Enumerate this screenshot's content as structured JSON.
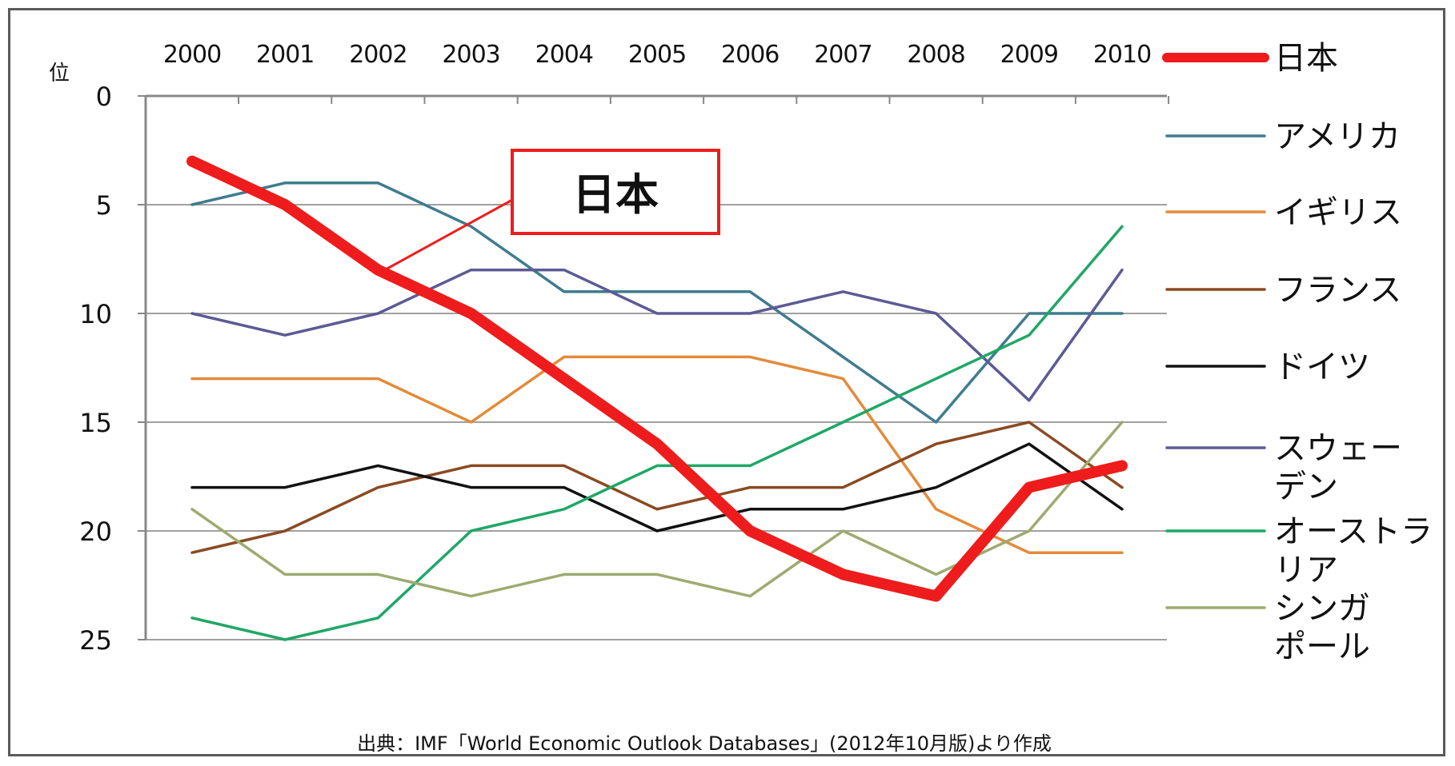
{
  "chart_data": {
    "type": "line",
    "x": [
      "2000",
      "2001",
      "2002",
      "2003",
      "2004",
      "2005",
      "2006",
      "2007",
      "2008",
      "2009",
      "2010"
    ],
    "ylabel": "位",
    "yticks": [
      0,
      5,
      10,
      15,
      20,
      25
    ],
    "ylim": [
      0,
      25
    ],
    "y_inverted": true,
    "x_axis_position": "top",
    "grid": true,
    "legend_position": "right",
    "series": [
      {
        "name": "日本",
        "color": "#ee1c1c",
        "width": 14,
        "values": [
          3,
          5,
          8,
          10,
          13,
          16,
          20,
          22,
          23,
          18,
          17
        ]
      },
      {
        "name": "アメリカ",
        "color": "#3f7c8e",
        "width": 3.5,
        "values": [
          5,
          4,
          4,
          6,
          9,
          9,
          9,
          12,
          15,
          10,
          10
        ]
      },
      {
        "name": "イギリス",
        "color": "#e38b39",
        "width": 3.5,
        "values": [
          13,
          13,
          13,
          15,
          12,
          12,
          12,
          13,
          19,
          21,
          21
        ]
      },
      {
        "name": "フランス",
        "color": "#8a4a22",
        "width": 3.5,
        "values": [
          21,
          20,
          18,
          17,
          17,
          19,
          18,
          18,
          16,
          15,
          18
        ]
      },
      {
        "name": "ドイツ",
        "color": "#111111",
        "width": 3.5,
        "values": [
          18,
          18,
          17,
          18,
          18,
          20,
          19,
          19,
          18,
          16,
          19
        ]
      },
      {
        "name": "スウェーデン",
        "color": "#5d5a94",
        "width": 3.5,
        "values": [
          10,
          11,
          10,
          8,
          8,
          10,
          10,
          9,
          10,
          14,
          8
        ]
      },
      {
        "name": "オーストラリア",
        "color": "#1fa766",
        "width": 3.5,
        "values": [
          24,
          25,
          24,
          20,
          19,
          17,
          17,
          15,
          13,
          11,
          6
        ]
      },
      {
        "name": "シンガポール",
        "color": "#9eaa70",
        "width": 3.5,
        "values": [
          19,
          22,
          22,
          23,
          22,
          22,
          23,
          20,
          22,
          20,
          15
        ]
      }
    ],
    "callout": "日本",
    "source": "出典：IMF「World Economic Outlook Databases」(2012年10月版)より作成"
  }
}
